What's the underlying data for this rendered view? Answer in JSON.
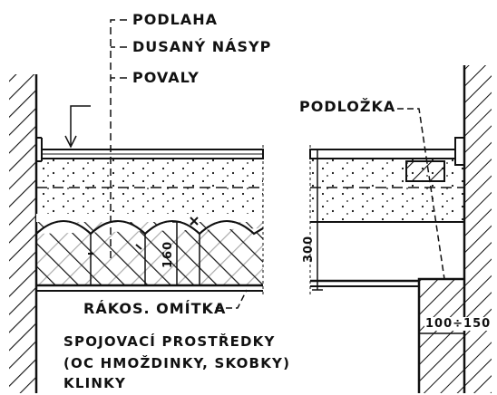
{
  "callouts": {
    "floor": "PODLAHA",
    "fill": "DUSANÝ NÁSYP",
    "beams": "POVALY",
    "pad": "PODLOŽKA",
    "plaster": "RÁKOS. OMÍTKA"
  },
  "dimensions": {
    "beam_depth": "160",
    "height": "300",
    "bearing": "100÷150"
  },
  "note": {
    "line1": "SPOJOVACÍ PROSTŘEDKY",
    "line2": "(OC HMOŽDINKY, SKOBKY)",
    "line3": "KLINKY"
  }
}
